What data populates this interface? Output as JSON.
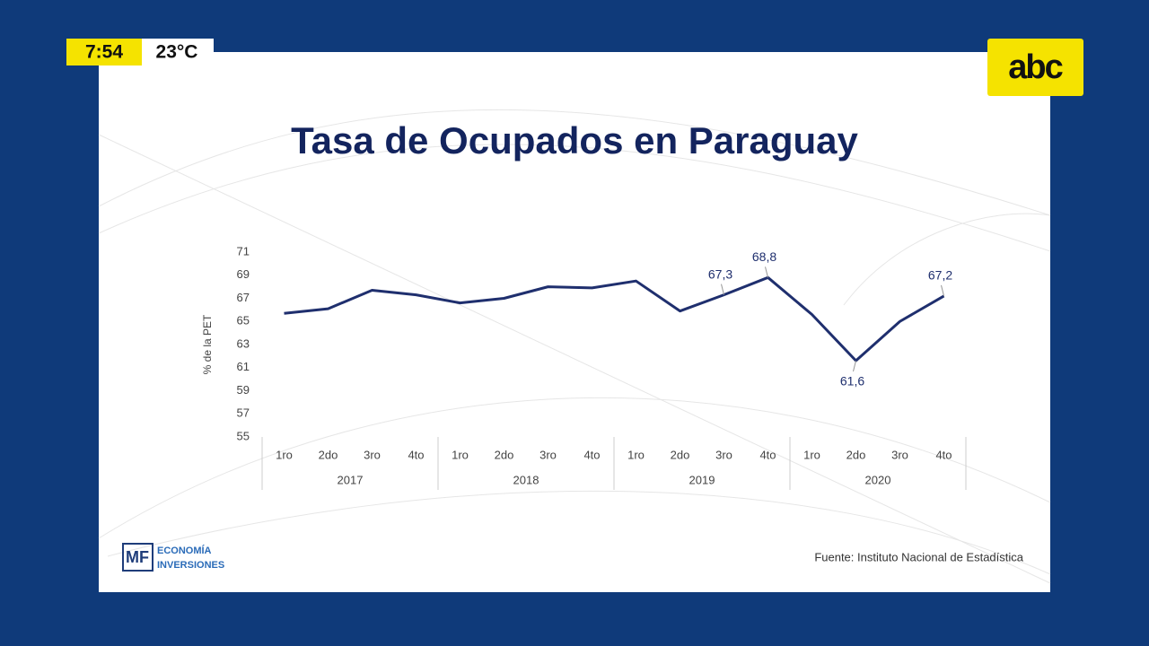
{
  "overlay": {
    "time": "7:54",
    "temperature": "23°C",
    "channel_logo": "abc"
  },
  "chart_data": {
    "type": "line",
    "title": "Tasa de Ocupados en Paraguay",
    "y_label": "% de la PET",
    "categories": [
      "1ro",
      "2do",
      "3ro",
      "4to",
      "1ro",
      "2do",
      "3ro",
      "4to",
      "1ro",
      "2do",
      "3ro",
      "4to",
      "1ro",
      "2do",
      "3ro",
      "4to"
    ],
    "groups": [
      "2017",
      "2018",
      "2019",
      "2020"
    ],
    "series": [
      {
        "name": null,
        "color": "#1f2f6e",
        "values": [
          65.7,
          66.1,
          67.7,
          67.3,
          66.6,
          67.0,
          68.0,
          67.9,
          68.5,
          65.9,
          67.3,
          68.8,
          65.6,
          61.6,
          65.0,
          67.2
        ],
        "value_labels": [
          null,
          null,
          null,
          null,
          null,
          null,
          null,
          null,
          null,
          null,
          "67,3",
          "68,8",
          null,
          "61,6",
          null,
          "67,2"
        ]
      }
    ],
    "ylim": [
      55,
      71
    ],
    "yticks": [
      55,
      57,
      59,
      61,
      63,
      65,
      67,
      69,
      71
    ],
    "grid": false,
    "source": "Fuente: Instituto Nacional de Estadística"
  },
  "branding": {
    "mark": "MF",
    "line1": "ECONOMÍA",
    "line2": "INVERSIONES"
  }
}
